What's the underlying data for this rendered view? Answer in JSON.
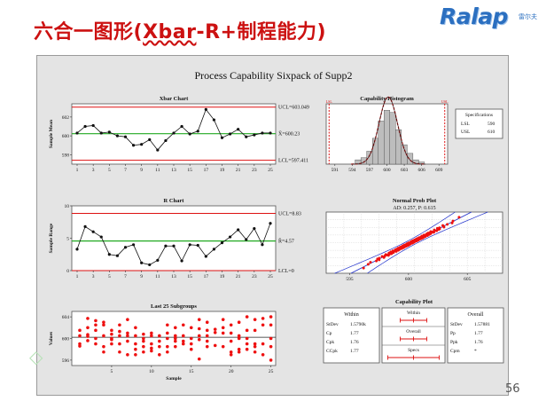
{
  "slide": {
    "title_prefix": "六合一图形(",
    "title_underlined": "Xbar",
    "title_suffix": "-R+制程能力)",
    "logo_text": "Ralap",
    "logo_subtext": "雷尔夫",
    "page_number": "56",
    "deco_glyph": "◇"
  },
  "chart_data": [
    {
      "id": "sixpack",
      "type": "composite",
      "title": "Process Capability Sixpack of Supp2",
      "colors": {
        "center": "#22aa22",
        "limit": "#dd1111",
        "data": "#111111",
        "points": "#ee1111",
        "fitline": "#2233cc",
        "bars": "#bdbdbd"
      }
    },
    {
      "id": "xbar",
      "type": "line",
      "title": "Xbar Chart",
      "ylabel": "Sample Mean",
      "x": [
        1,
        2,
        3,
        4,
        5,
        6,
        7,
        8,
        9,
        10,
        11,
        12,
        13,
        14,
        15,
        16,
        17,
        18,
        19,
        20,
        21,
        22,
        23,
        24,
        25
      ],
      "values": [
        600.3,
        601.0,
        601.1,
        600.3,
        600.4,
        600.0,
        599.9,
        599.0,
        599.1,
        599.6,
        598.5,
        599.5,
        600.3,
        601.0,
        600.2,
        600.5,
        602.8,
        601.7,
        599.8,
        600.2,
        600.7,
        599.9,
        600.1,
        600.3,
        600.3
      ],
      "xticks": [
        "1",
        "3",
        "5",
        "7",
        "9",
        "11",
        "13",
        "15",
        "17",
        "19",
        "21",
        "23",
        "25"
      ],
      "yticks": [
        598,
        600,
        602
      ],
      "ylim": [
        597.0,
        603.4
      ],
      "ucl": 603.049,
      "center": 600.23,
      "lcl": 597.411,
      "ucl_label": "UCL=603.049",
      "center_label": "X̄=600.23",
      "lcl_label": "LCL=597.411"
    },
    {
      "id": "rchart",
      "type": "line",
      "title": "R Chart",
      "ylabel": "Sample Range",
      "x": [
        1,
        2,
        3,
        4,
        5,
        6,
        7,
        8,
        9,
        10,
        11,
        12,
        13,
        14,
        15,
        16,
        17,
        18,
        19,
        20,
        21,
        22,
        23,
        24,
        25
      ],
      "values": [
        3.3,
        6.8,
        6.0,
        5.2,
        2.5,
        2.3,
        3.6,
        4.0,
        1.2,
        0.9,
        1.6,
        3.8,
        3.8,
        1.5,
        4.0,
        3.9,
        2.2,
        3.3,
        4.3,
        5.2,
        6.3,
        4.8,
        6.5,
        4.0,
        7.3
      ],
      "xticks": [
        "1",
        "3",
        "5",
        "7",
        "9",
        "11",
        "13",
        "15",
        "17",
        "19",
        "21",
        "23",
        "25"
      ],
      "yticks": [
        0,
        5,
        10
      ],
      "ylim": [
        0,
        10
      ],
      "ucl": 8.83,
      "center": 4.57,
      "lcl": 0,
      "ucl_label": "UCL=8.83",
      "center_label": "R̄=4.57",
      "lcl_label": "LCL=0"
    },
    {
      "id": "last25",
      "type": "scatter",
      "title": "Last 25 Subgroups",
      "ylabel": "Values",
      "xlabel": "Sample",
      "xticks": [
        "5",
        "10",
        "15",
        "20",
        "25"
      ],
      "xtick_values": [
        5,
        10,
        15,
        20,
        25
      ],
      "yticks": [
        596,
        600,
        604
      ],
      "ylim": [
        595,
        605
      ],
      "xlim": [
        0,
        25.6
      ],
      "center": 600.23,
      "subgroups": [
        [
          599.0,
          600.5,
          601.5,
          598.6
        ],
        [
          600.4,
          602.0,
          603.7,
          599.6,
          600.7
        ],
        [
          601.5,
          602.5,
          599.0,
          600.0,
          603.3
        ],
        [
          597.5,
          600.5,
          602.5,
          603.0,
          598.5
        ],
        [
          599.0,
          600.0,
          601.5,
          600.8,
          599.8
        ],
        [
          597.5,
          600.5,
          601.3,
          599.0,
          602.5
        ],
        [
          597.0,
          599.5,
          603.5,
          601.0,
          600.5
        ],
        [
          598.0,
          600.5,
          599.0,
          602.0,
          597.0
        ],
        [
          599.5,
          600.8,
          598.5,
          597.5,
          600.0
        ],
        [
          597.7,
          600.5,
          598.2,
          601.0,
          599.0
        ],
        [
          597.0,
          598.5,
          599.5,
          600.5
        ],
        [
          598.5,
          600.0,
          601.0,
          597.5,
          602.5
        ],
        [
          598.5,
          600.5,
          602.0,
          600.0,
          599.5
        ],
        [
          599.0,
          602.5,
          600.5,
          599.5
        ],
        [
          598.0,
          602.0,
          600.0,
          599.0
        ],
        [
          596.2,
          599.8,
          601.8,
          603.5,
          600.5
        ],
        [
          598.5,
          601.5,
          600.5,
          603.0,
          599.5
        ],
        [
          598.7,
          601.7,
          601.1
        ],
        [
          598.5,
          601.0,
          602.0,
          603.5
        ],
        [
          597.0,
          599.5,
          601.0,
          602.5,
          597.5
        ],
        [
          597.5,
          600.5,
          603.0,
          600.0,
          598.0
        ],
        [
          598.0,
          600.0,
          601.5,
          604.0,
          599.0
        ],
        [
          597.5,
          599.0,
          601.5,
          603.5,
          598.5
        ],
        [
          597.0,
          602.5,
          599.0,
          603.7
        ],
        [
          596.0,
          600.0,
          602.5,
          604.0,
          598.5
        ]
      ]
    },
    {
      "id": "histogram",
      "type": "bar",
      "title": "Capability Histogram",
      "xticks": [
        "591",
        "594",
        "597",
        "600",
        "603",
        "606",
        "609"
      ],
      "xtick_values": [
        591,
        594,
        597,
        600,
        603,
        606,
        609
      ],
      "xlim": [
        589.5,
        610.5
      ],
      "bins": [
        595,
        596,
        597,
        598,
        599,
        600,
        601,
        602,
        603,
        604,
        605,
        606
      ],
      "values": [
        2,
        3,
        6,
        12,
        20,
        25,
        24,
        16,
        9,
        5,
        2,
        1
      ],
      "ymax": 28,
      "lsl": 590,
      "usl": 610,
      "mean": 600.23,
      "sd": 1.6,
      "lsl_tag": "LSL",
      "usl_tag": "USL",
      "spec_title": "Specifications",
      "spec_rows": [
        [
          "LSL",
          "590"
        ],
        [
          "USL",
          "610"
        ]
      ]
    },
    {
      "id": "normprob",
      "type": "scatter",
      "title": "Normal Prob Plot",
      "subtitle": "AD: 0.257, P: 0.615",
      "xticks": [
        "595",
        "600",
        "605"
      ],
      "xtick_values": [
        595,
        600,
        605
      ],
      "xlim": [
        593,
        608
      ],
      "ylim": [
        -3.2,
        3.2
      ],
      "mean": 600.23,
      "sd": 1.6,
      "n": 125
    },
    {
      "id": "capability",
      "type": "table",
      "title": "Capability Plot",
      "within_title": "Within",
      "within_rows": [
        [
          "StDev",
          "1.5790k"
        ],
        [
          "Cp",
          "1.77"
        ],
        [
          "Cpk",
          "1.76"
        ],
        [
          "CCpk",
          "1.77"
        ]
      ],
      "overall_title": "Overall",
      "overall_rows": [
        [
          "StDev",
          "1.57881"
        ],
        [
          "Pp",
          "1.77"
        ],
        [
          "Ppk",
          "1.76"
        ],
        [
          "Cpm",
          "*"
        ]
      ],
      "mini_labels": [
        "Within",
        "Overall",
        "Specs"
      ]
    }
  ]
}
